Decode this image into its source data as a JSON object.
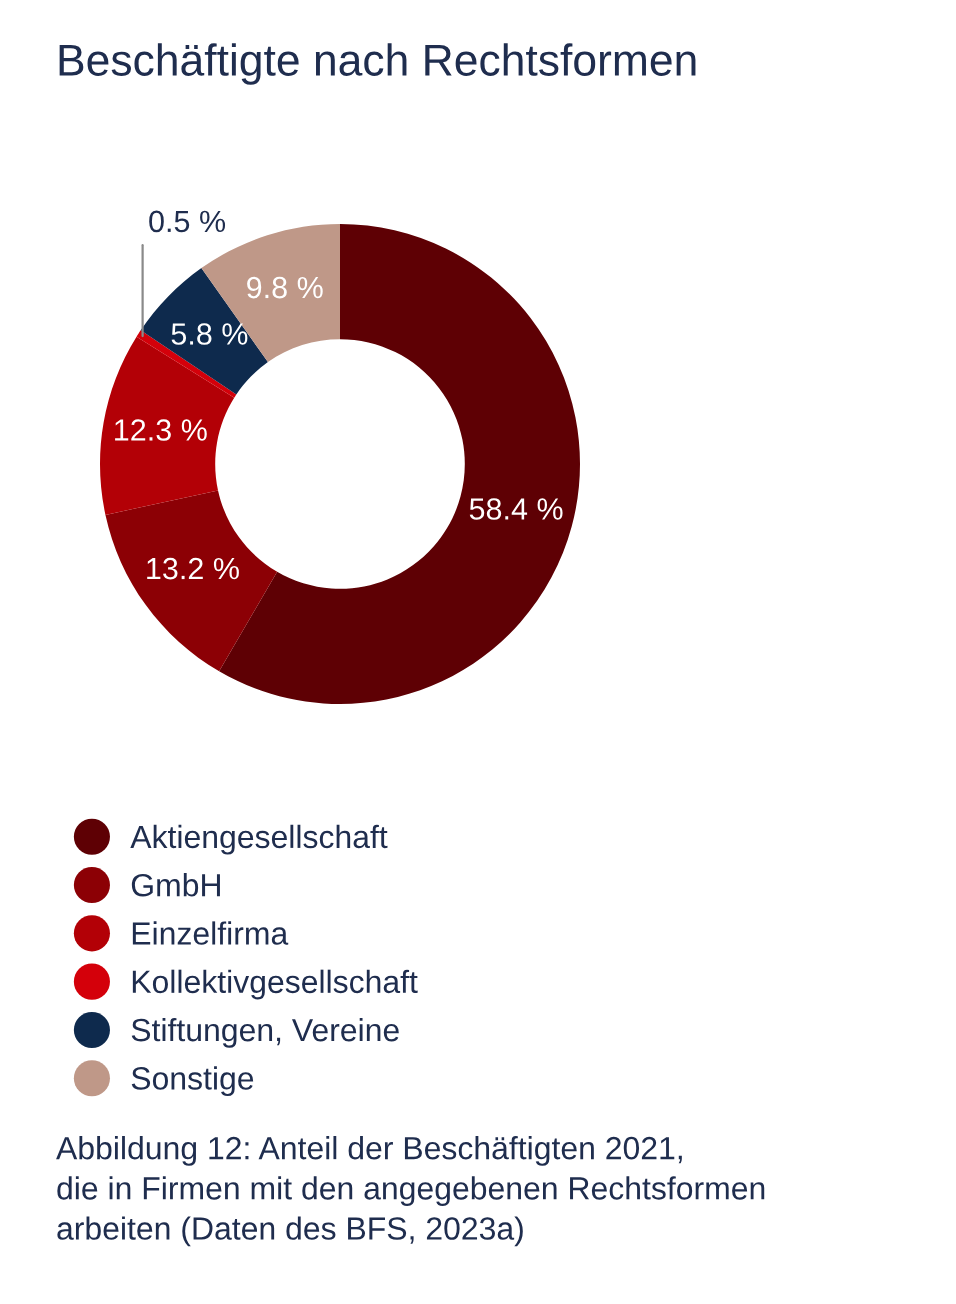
{
  "chart_data": {
    "type": "donut",
    "title": "Beschäftigte nach Rechtsformen",
    "categories": [
      "Aktiengesellschaft",
      "GmbH",
      "Einzelfirma",
      "Kollektivgesellschaft",
      "Stiftungen, Vereine",
      "Sonstige"
    ],
    "values": [
      58.4,
      13.2,
      12.3,
      0.5,
      5.8,
      9.8
    ],
    "value_labels": [
      "58.4 %",
      "13.2 %",
      "12.3 %",
      "0.5 %",
      "5.8 %",
      "9.8 %"
    ],
    "colors": [
      "#5e0004",
      "#8c0005",
      "#b30006",
      "#d4000a",
      "#0e2a4d",
      "#bf9888"
    ],
    "legend": "bottom",
    "annotations": [
      "Abbildung 12: Anteil der Beschäftigten 2021,\ndie in Firmen mit den angegebenen Rechtsformen\narbeiten (Daten des BFS, 2023a)"
    ]
  }
}
